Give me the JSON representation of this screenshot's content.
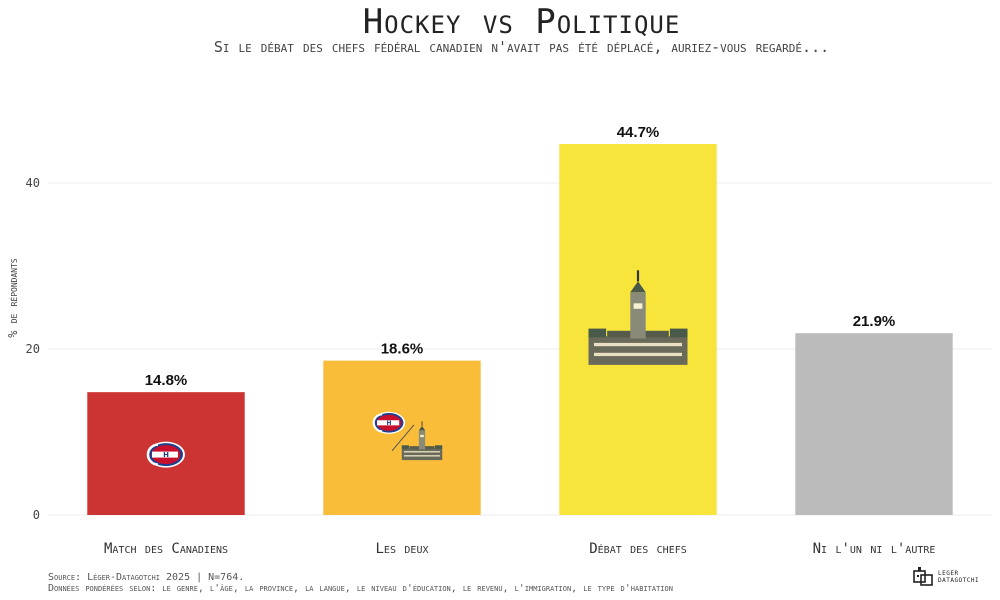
{
  "chart_data": {
    "type": "bar",
    "title": "Hockey vs Politique",
    "subtitle": "Si le débat des chefs fédéral canadien n'avait pas été déplacé, auriez-vous regardé...",
    "ylabel": "% de répondants",
    "xlabel": "",
    "ylim": [
      0,
      50
    ],
    "yticks": [
      0,
      20,
      40
    ],
    "grid": true,
    "categories": [
      "Match des Canadiens",
      "Les deux",
      "Débat des chefs",
      "Ni l'un ni l'autre"
    ],
    "values": [
      14.8,
      18.6,
      44.7,
      21.9
    ],
    "value_labels": [
      "14.8%",
      "18.6%",
      "44.7%",
      "21.9%"
    ],
    "colors": [
      "#cc3333",
      "#f9bd3a",
      "#f7e53b",
      "#bbbbbb"
    ],
    "icons": [
      "canadiens-logo-icon",
      "canadiens-and-parliament-icon",
      "parliament-icon",
      ""
    ]
  },
  "footer": {
    "line1": "Source: Léger-Datagotchi 2025 | N=764.",
    "line2": "Données pondérées selon: le genre, l'âge, la province, la langue, le niveau d'éducation, le revenu, l'immigration, le type d'habitation"
  },
  "brand": {
    "line1": "LEGER",
    "line2": "DATAGOTCHI"
  }
}
